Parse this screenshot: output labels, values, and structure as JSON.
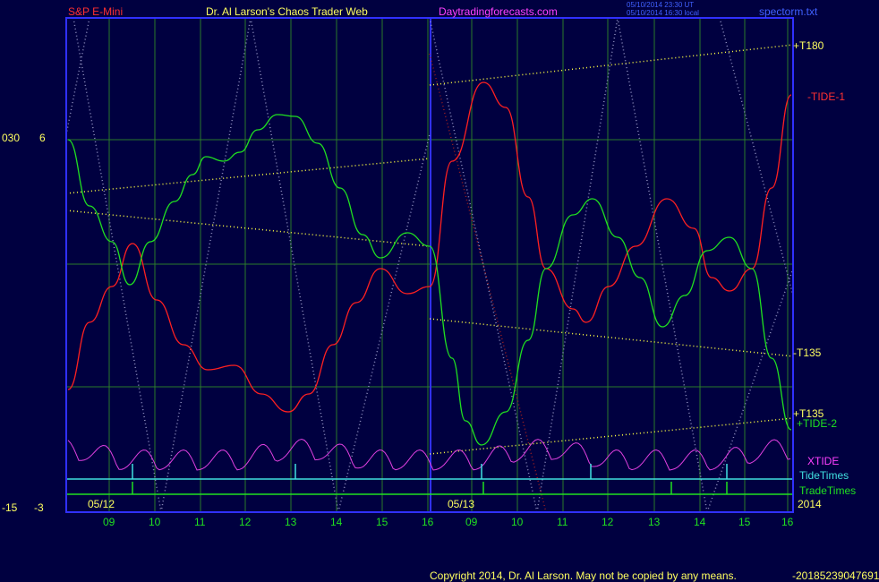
{
  "header": {
    "symbol": "S&P E-Mini",
    "title": "Dr. Al Larson's Chaos Trader Web",
    "site": "Daytradingforecasts.com",
    "time_utc": "05/10/2014 23:30 UT",
    "time_local": "05/10/2014 16:30 local",
    "file": "spectorm.txt"
  },
  "left_axis": {
    "top_labels": [
      "030",
      "6"
    ],
    "bottom_labels": [
      "-15",
      "-3"
    ]
  },
  "date_labels": [
    "05/12",
    "05/13"
  ],
  "year": "2014",
  "x_ticks": [
    "09",
    "10",
    "11",
    "12",
    "13",
    "14",
    "15",
    "16",
    "09",
    "10",
    "11",
    "12",
    "13",
    "14",
    "15",
    "16"
  ],
  "right_labels": {
    "t180": "+T180",
    "tide1": "-TIDE-1",
    "t135_neg": "-T135",
    "t135_pos": "+T135",
    "tide2": "+TIDE-2",
    "xtide": "XTIDE",
    "tidetimes": "TideTimes",
    "tradetimes": "TradeTimes"
  },
  "copyright": "Copyright 2014, Dr. Al Larson. May not be copied by any means.",
  "copyright_tail": "-20185239047691",
  "colors": {
    "background": "#000040",
    "frame": "#3030ff",
    "grid": "#2a7a2a",
    "red_line": "#ff2020",
    "green_line": "#20e020",
    "magenta_line": "#e040e0",
    "cyan_line": "#40e0e0",
    "yellow": "#ffff40",
    "red_text": "#ff3030",
    "magenta_text": "#ff40ff"
  },
  "chart_data": {
    "type": "line",
    "title": "",
    "x": [
      "05/12 08:00",
      "05/12 09:00",
      "05/12 10:00",
      "05/12 11:00",
      "05/12 12:00",
      "05/12 13:00",
      "05/12 14:00",
      "05/12 15:00",
      "05/12 16:00",
      "05/13 09:00",
      "05/13 10:00",
      "05/13 11:00",
      "05/13 12:00",
      "05/13 13:00",
      "05/13 14:00",
      "05/13 15:00",
      "05/13 16:00"
    ],
    "series": [
      {
        "name": "-TIDE-1",
        "values": [
          -12,
          -8,
          -3,
          -9,
          -12,
          -15,
          -11,
          -5,
          -6,
          8,
          3,
          -4,
          -2,
          2,
          -1,
          -4,
          6
        ]
      },
      {
        "name": "+TIDE-2",
        "values": [
          6,
          2,
          -4,
          4,
          7,
          8,
          2,
          -3,
          -2,
          -6,
          -12,
          -1,
          2,
          -2,
          -5,
          -1,
          -12
        ]
      },
      {
        "name": "XTIDE",
        "values": [
          -17,
          -16,
          -17,
          -16,
          -17,
          -16,
          -15,
          -16,
          -17,
          -17,
          -17,
          -17,
          -17,
          -16,
          -15,
          -16,
          -17
        ]
      }
    ]
  }
}
